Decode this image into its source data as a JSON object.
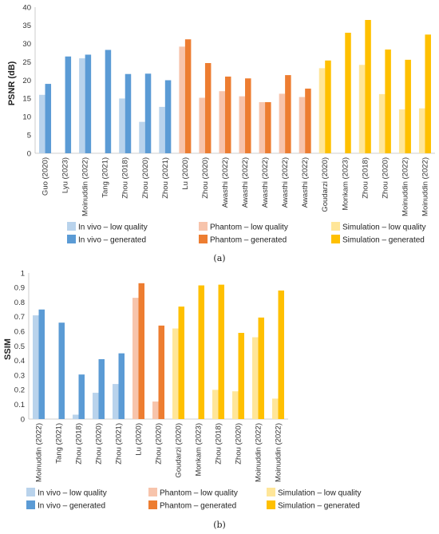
{
  "colors": {
    "invivo_low": "#b9d3ec",
    "invivo_gen": "#5b9bd5",
    "phantom_low": "#f7c4ac",
    "phantom_gen": "#ed7d31",
    "sim_low": "#ffe699",
    "sim_gen": "#ffc000"
  },
  "legend": [
    {
      "key": "invivo_low",
      "label": "In vivo – low quality"
    },
    {
      "key": "phantom_low",
      "label": "Phantom – low quality"
    },
    {
      "key": "sim_low",
      "label": "Simulation – low quality"
    },
    {
      "key": "invivo_gen",
      "label": "In vivo – generated"
    },
    {
      "key": "phantom_gen",
      "label": "Phantom – generated"
    },
    {
      "key": "sim_gen",
      "label": "Simulation – generated"
    }
  ],
  "chart_data": [
    {
      "type": "bar",
      "caption": "(a)",
      "ylabel": "PSNR (dB)",
      "ylim": [
        0,
        40
      ],
      "yticks": [
        0,
        5,
        10,
        15,
        20,
        25,
        30,
        35,
        40
      ],
      "grid": false,
      "legend_position": "bottom",
      "categories": [
        "Guo (2020)",
        "Lyu (2023)",
        "Moinuddin (2022)",
        "Tang (2021)",
        "Zhou (2018)",
        "Zhou (2020)",
        "Zhou (2021)",
        "Lu (2020)",
        "Zhou (2020)",
        "Awasthi (2022)",
        "Awasthi (2022)",
        "Awasthi (2022)",
        "Awasthi (2022)",
        "Awasthi (2022)",
        "Goudarzi (2020)",
        "Monkam (2023)",
        "Zhou (2018)",
        "Zhou (2020)",
        "Moinuddin (2022)",
        "Moinuddin (2022)"
      ],
      "group": [
        "invivo",
        "invivo",
        "invivo",
        "invivo",
        "invivo",
        "invivo",
        "invivo",
        "phantom",
        "phantom",
        "phantom",
        "phantom",
        "phantom",
        "phantom",
        "phantom",
        "sim",
        "sim",
        "sim",
        "sim",
        "sim",
        "sim"
      ],
      "series": [
        {
          "name": "low quality",
          "values": [
            16,
            null,
            26,
            null,
            15,
            8.6,
            12.7,
            29.2,
            15.2,
            17,
            15.6,
            14,
            16.3,
            15.4,
            23.3,
            null,
            24.2,
            16.2,
            12,
            12.3
          ]
        },
        {
          "name": "generated",
          "values": [
            19,
            26.5,
            27,
            28.3,
            21.7,
            21.8,
            20,
            31.2,
            24.7,
            21,
            20.5,
            14,
            21.4,
            17.7,
            25.4,
            33,
            36.5,
            28.4,
            25.6,
            32.5
          ]
        }
      ]
    },
    {
      "type": "bar",
      "caption": "(b)",
      "ylabel": "SSIM",
      "ylim": [
        0,
        1
      ],
      "yticks": [
        "0",
        "0.1",
        "0.2",
        "0.3",
        "0.4",
        "0.5",
        "0.6",
        "0.7",
        "0.8",
        "0.9",
        "1"
      ],
      "grid": false,
      "legend_position": "bottom",
      "categories": [
        "Moinuddin (2022)",
        "Tang (2021)",
        "Zhou (2018)",
        "Zhou (2020)",
        "Zhou (2021)",
        "Lu (2020)",
        "Zhou (2020)",
        "Goudarzi (2020)",
        "Monkam (2023)",
        "Zhou (2018)",
        "Zhou (2020)",
        "Moinuddin (2022)",
        "Moinuddin (2022)"
      ],
      "group": [
        "invivo",
        "invivo",
        "invivo",
        "invivo",
        "invivo",
        "phantom",
        "phantom",
        "sim",
        "sim",
        "sim",
        "sim",
        "sim",
        "sim"
      ],
      "series": [
        {
          "name": "low quality",
          "values": [
            0.71,
            null,
            0.03,
            0.18,
            0.24,
            0.83,
            0.12,
            0.62,
            null,
            0.2,
            0.19,
            0.56,
            0.14
          ]
        },
        {
          "name": "generated",
          "values": [
            0.75,
            0.66,
            0.305,
            0.41,
            0.45,
            0.93,
            0.64,
            0.77,
            0.915,
            0.92,
            0.59,
            0.695,
            0.88
          ]
        }
      ]
    }
  ]
}
